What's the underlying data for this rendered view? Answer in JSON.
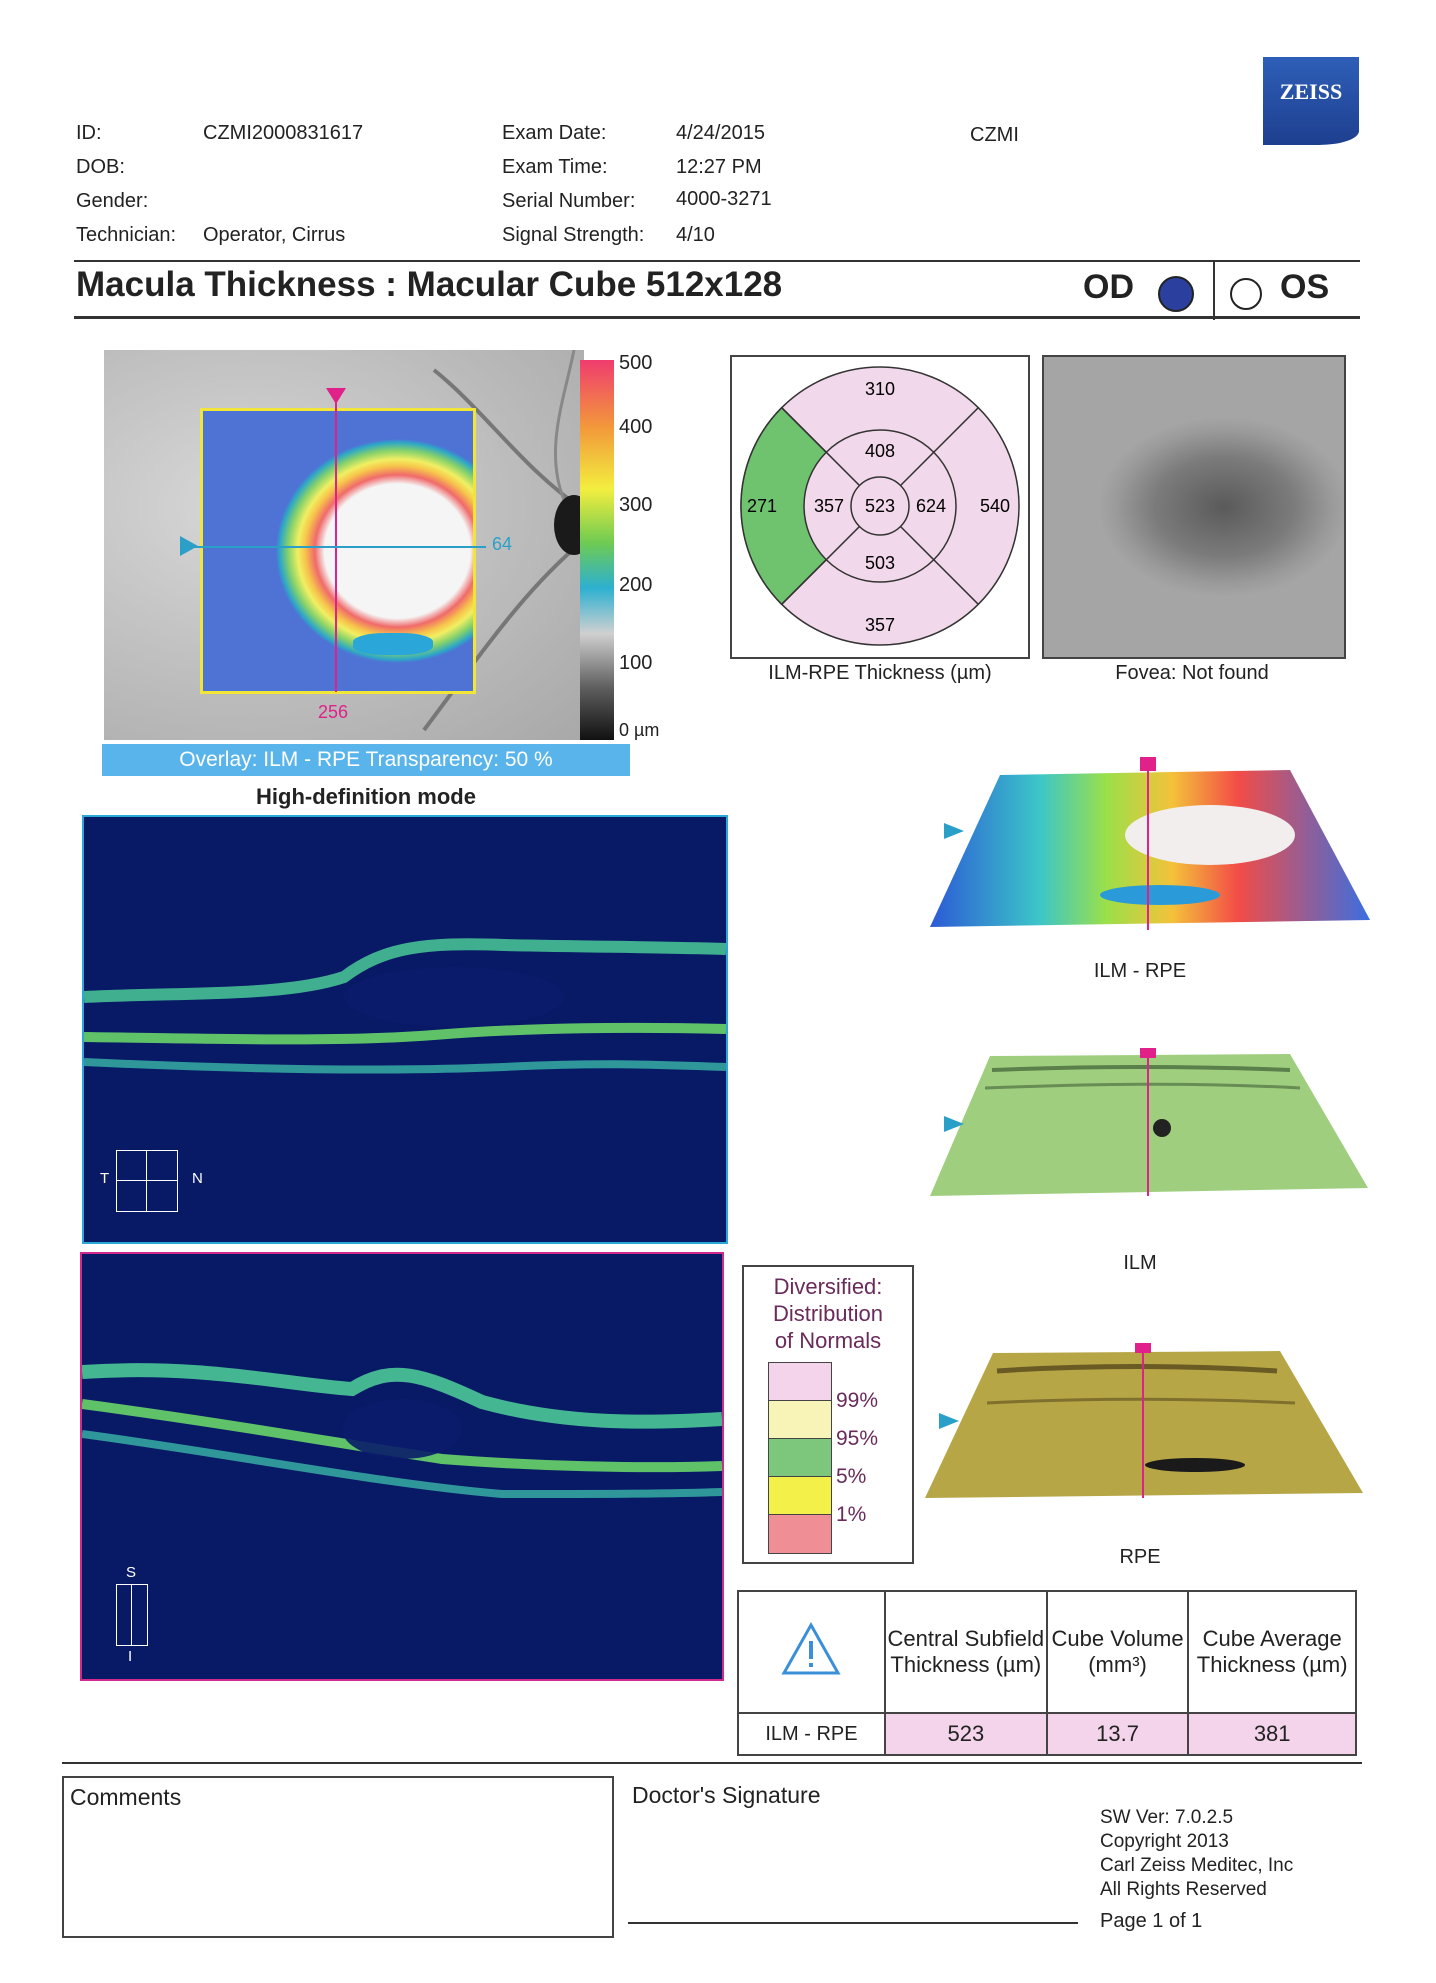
{
  "brand": {
    "logo": "ZEISS"
  },
  "patient": {
    "id_label": "ID:",
    "id_value": "CZMI2000831617",
    "dob_label": "DOB:",
    "gender_label": "Gender:",
    "technician_label": "Technician:",
    "technician_value": "Operator, Cirrus"
  },
  "exam": {
    "date_label": "Exam Date:",
    "date_value": "4/24/2015",
    "time_label": "Exam Time:",
    "time_value": "12:27 PM",
    "serial_label": "Serial Number:",
    "serial_value": "4000-3271",
    "signal_label": "Signal Strength:",
    "signal_value": "4/10",
    "site": "CZMI"
  },
  "report": {
    "title": "Macula Thickness : Macular Cube 512x128",
    "od_label": "OD",
    "os_label": "OS",
    "selected_eye": "OD"
  },
  "fundus": {
    "scale_labels": [
      "500",
      "400",
      "300",
      "200",
      "100",
      "0 µm"
    ],
    "horizontal_marker": "64",
    "vertical_marker": "256",
    "overlay_text": "Overlay: ILM - RPE  Transparency: 50 %"
  },
  "scan": {
    "mode_label": "High-definition mode",
    "b1_orientation": {
      "left": "T",
      "right": "N"
    },
    "b2_orientation": {
      "top": "S",
      "bottom": "I"
    }
  },
  "etdrs": {
    "outer_superior": "310",
    "inner_superior": "408",
    "outer_temporal": "271",
    "inner_temporal": "357",
    "center": "523",
    "inner_nasal": "624",
    "outer_nasal": "540",
    "inner_inferior": "503",
    "outer_inferior": "357",
    "caption": "ILM-RPE Thickness (µm)",
    "colors": {
      "normal_pink": "#f1d8ea",
      "green": "#6fc36f"
    }
  },
  "fovea": {
    "caption": "Fovea: Not found"
  },
  "maps3d": {
    "labels": [
      "ILM - RPE",
      "ILM",
      "RPE"
    ]
  },
  "legend": {
    "title_lines": [
      "Diversified:",
      "Distribution",
      "of Normals"
    ],
    "levels": [
      "99%",
      "95%",
      "5%",
      "1%"
    ],
    "colors": [
      "#f3d4ea",
      "#f8f4b8",
      "#7cc77c",
      "#f4f04a",
      "#ef8f95"
    ]
  },
  "summary": {
    "headers": [
      "Central Subfield Thickness (µm)",
      "Cube Volume (mm³)",
      "Cube Average Thickness (µm)"
    ],
    "row_label": "ILM - RPE",
    "values": [
      "523",
      "13.7",
      "381"
    ]
  },
  "footer": {
    "comments_label": "Comments",
    "signature_label": "Doctor's Signature",
    "sw_version": "SW Ver: 7.0.2.5",
    "copyright": "Copyright 2013",
    "company": "Carl Zeiss Meditec, Inc",
    "rights": "All Rights Reserved",
    "page": "Page 1 of 1"
  }
}
